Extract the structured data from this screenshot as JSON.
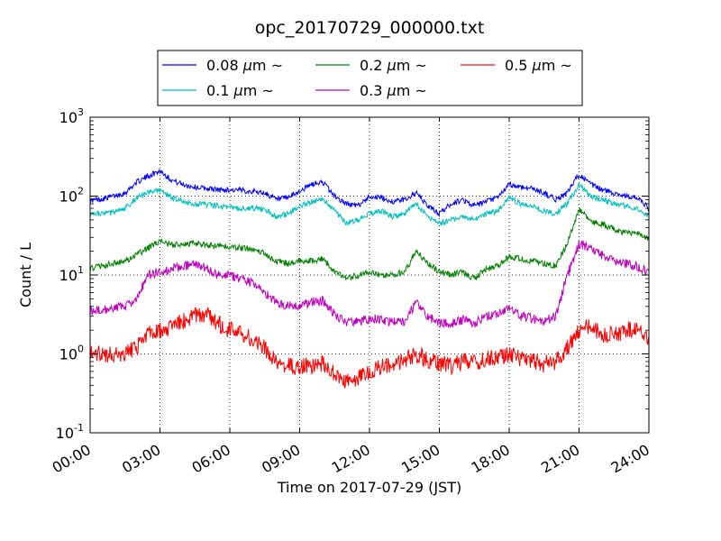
{
  "chart_data": {
    "type": "line",
    "title": "opc_20170729_000000.txt",
    "xlabel": "Time on 2017-07-29 (JST)",
    "ylabel": "Count / L",
    "xlim": [
      0,
      24
    ],
    "ylim": [
      0.1,
      1000
    ],
    "y_scale": "log",
    "grid": true,
    "legend_position": "top-center",
    "x_tick_labels": [
      "00:00",
      "03:00",
      "06:00",
      "09:00",
      "12:00",
      "15:00",
      "18:00",
      "21:00",
      "24:00"
    ],
    "y_tick_labels": [
      {
        "base": "10",
        "exp": "-1"
      },
      {
        "base": "10",
        "exp": "0"
      },
      {
        "base": "10",
        "exp": "1"
      },
      {
        "base": "10",
        "exp": "2"
      },
      {
        "base": "10",
        "exp": "3"
      }
    ],
    "hours": [
      0.0,
      0.5,
      1.0,
      1.5,
      2.0,
      2.5,
      3.0,
      3.5,
      4.0,
      4.5,
      5.0,
      5.5,
      6.0,
      6.5,
      7.0,
      7.5,
      8.0,
      8.5,
      9.0,
      9.5,
      10.0,
      10.5,
      11.0,
      11.5,
      12.0,
      12.5,
      13.0,
      13.5,
      14.0,
      14.5,
      15.0,
      15.5,
      16.0,
      16.5,
      17.0,
      17.5,
      18.0,
      18.5,
      19.0,
      19.5,
      20.0,
      20.5,
      21.0,
      21.5,
      22.0,
      22.5,
      23.0,
      23.5,
      24.0
    ],
    "series": [
      {
        "name": "0.08 μm ~",
        "legend_main": "0.08 ",
        "color": "#0000ff",
        "values": [
          88,
          92,
          100,
          110,
          150,
          180,
          210,
          160,
          140,
          130,
          125,
          120,
          120,
          118,
          115,
          110,
          90,
          95,
          115,
          140,
          150,
          100,
          80,
          75,
          100,
          95,
          85,
          90,
          110,
          75,
          60,
          80,
          90,
          75,
          85,
          95,
          140,
          130,
          125,
          110,
          90,
          110,
          190,
          140,
          120,
          110,
          100,
          95,
          70
        ]
      },
      {
        "name": "0.1 μm ~",
        "legend_main": "0.1 ",
        "color": "#00bfbf",
        "values": [
          58,
          60,
          62,
          70,
          95,
          110,
          120,
          95,
          85,
          80,
          78,
          75,
          72,
          70,
          70,
          68,
          55,
          60,
          75,
          85,
          90,
          65,
          45,
          50,
          60,
          65,
          55,
          60,
          80,
          55,
          45,
          50,
          55,
          50,
          60,
          65,
          95,
          80,
          75,
          65,
          60,
          80,
          140,
          100,
          90,
          80,
          75,
          70,
          55
        ]
      },
      {
        "name": "0.2 μm ~",
        "legend_main": "0.2 ",
        "color": "#008000",
        "values": [
          12,
          13,
          14,
          15,
          18,
          22,
          27,
          24,
          25,
          25,
          24,
          23,
          23,
          22,
          21,
          19,
          15,
          14,
          15,
          15,
          16,
          11,
          9,
          10,
          11,
          10,
          10,
          11,
          20,
          14,
          11,
          10,
          11,
          9,
          12,
          13,
          17,
          16,
          15,
          14,
          13,
          25,
          70,
          48,
          44,
          38,
          35,
          33,
          28
        ]
      },
      {
        "name": "0.3 μm ~",
        "legend_main": "0.3 ",
        "color": "#bf00bf",
        "values": [
          3.5,
          3.6,
          3.8,
          4,
          5,
          10,
          11,
          12,
          13,
          14,
          12,
          10,
          10,
          9,
          8,
          6,
          4.5,
          4,
          4.2,
          4.5,
          4.8,
          3.2,
          2.5,
          2.6,
          2.8,
          2.7,
          2.5,
          2.6,
          4.5,
          3,
          2.5,
          2.4,
          2.7,
          2.4,
          3,
          3.2,
          3.8,
          3,
          2.8,
          2.6,
          3,
          10,
          25,
          22,
          18,
          15,
          14,
          13,
          11
        ]
      },
      {
        "name": "0.5 μm ~",
        "legend_main": "0.5 ",
        "color": "#ff0000",
        "values": [
          1.1,
          1.0,
          0.95,
          1.0,
          1.2,
          1.8,
          2.0,
          2.2,
          2.6,
          3.0,
          3.2,
          2.4,
          2.0,
          1.8,
          1.5,
          1.2,
          0.75,
          0.7,
          0.7,
          0.72,
          0.75,
          0.55,
          0.45,
          0.5,
          0.6,
          0.7,
          0.75,
          0.8,
          1.0,
          0.85,
          0.75,
          0.7,
          0.8,
          0.75,
          0.85,
          0.9,
          1.0,
          0.85,
          0.8,
          0.75,
          0.8,
          1.2,
          2.0,
          2.2,
          1.8,
          1.7,
          2.0,
          2.1,
          1.5
        ]
      }
    ]
  }
}
